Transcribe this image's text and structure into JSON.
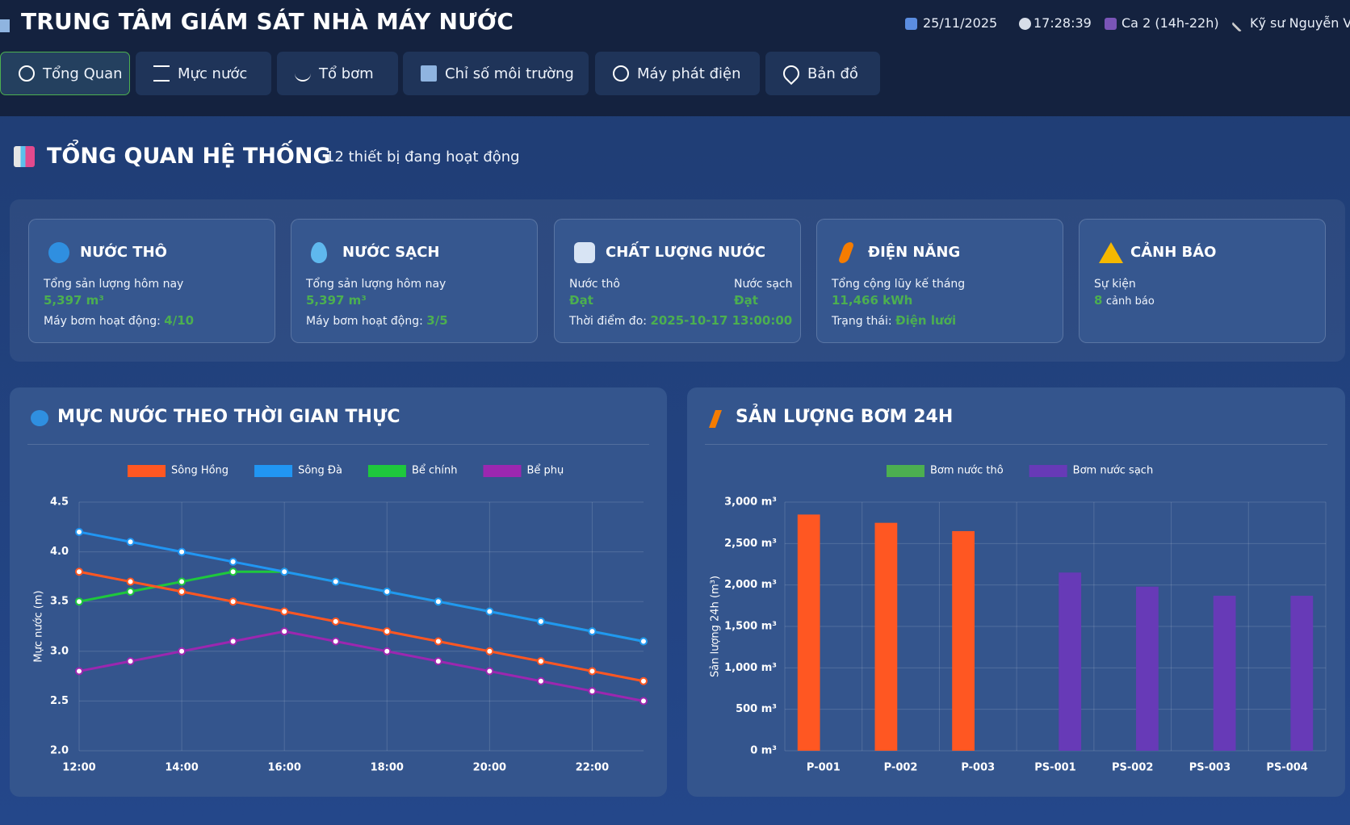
{
  "header": {
    "title": "TRUNG TÂM GIÁM SÁT NHÀ MÁY NƯỚC",
    "date": "25/11/2025",
    "time": "17:28:39",
    "shift": "Ca 2 (14h-22h)",
    "user": "Kỹ sư Nguyễn Vă"
  },
  "nav": [
    "Tổng Quan",
    "Mực nước",
    "Tổ bơm",
    "Chỉ số môi trường",
    "Máy phát điện",
    "Bản đồ"
  ],
  "overview": {
    "title": "TỔNG QUAN HỆ THỐNG",
    "subtitle": "12 thiết bị đang hoạt động"
  },
  "cards": [
    {
      "title": "NƯỚC THÔ",
      "label": "Tổng sản lượng hôm nay",
      "value": "5,397 m³",
      "pump_label": "Máy bơm hoạt động:",
      "pump_value": "4/10"
    },
    {
      "title": "NƯỚC SẠCH",
      "label": "Tổng sản lượng hôm nay",
      "value": "5,397 m³",
      "pump_label": "Máy bơm hoạt động:",
      "pump_value": "3/5"
    },
    {
      "title": "CHẤT LƯỢNG NƯỚC",
      "raw_label": "Nước thô",
      "raw_value": "Đạt",
      "clean_label": "Nước sạch",
      "clean_value": "Đạt",
      "time_label": "Thời điểm đo:",
      "time_value": "2025-10-17 13:00:00"
    },
    {
      "title": "ĐIỆN NĂNG",
      "label": "Tổng cộng lũy kế tháng",
      "value": "11,466 kWh",
      "status_label": "Trạng thái:",
      "status_value": "Điện lưới"
    },
    {
      "title": "CẢNH BÁO",
      "label": "Sự kiện",
      "count": 8,
      "count_label": "cảnh báo"
    }
  ],
  "chart_data": [
    {
      "type": "line",
      "title": "MỰC NƯỚC THEO THỜI GIAN THỰC",
      "y_label": "Mực nước (m)",
      "categories": [
        "12:00",
        null,
        "14:00",
        null,
        "16:00",
        null,
        "18:00",
        null,
        "20:00",
        null,
        "22:00",
        null
      ],
      "series": [
        {
          "name": "Sông Hồng",
          "color": "#ff5722",
          "values": [
            3.8,
            3.7,
            3.6,
            3.5,
            3.4,
            3.3,
            3.2,
            3.1,
            3.0,
            2.9,
            2.8,
            2.7
          ]
        },
        {
          "name": "Sông Đà",
          "color": "#2196f3",
          "values": [
            4.2,
            4.1,
            4.0,
            3.9,
            3.8,
            3.7,
            3.6,
            3.5,
            3.4,
            3.3,
            3.2,
            3.1
          ]
        },
        {
          "name": "Bể chính",
          "color": "#1ec83c",
          "values": [
            3.5,
            3.6,
            3.7,
            3.8,
            3.8,
            3.7,
            3.6,
            3.5,
            3.4,
            3.3,
            3.2,
            3.1
          ]
        },
        {
          "name": "Bể phụ",
          "color": "#9c27b0",
          "values": [
            2.8,
            2.9,
            3.0,
            3.1,
            3.2,
            3.1,
            3.0,
            2.9,
            2.8,
            2.7,
            2.6,
            2.5
          ]
        }
      ],
      "ylim": [
        2,
        4.5
      ],
      "yticks": [
        {
          "value": 2,
          "label": "2.0"
        },
        2.5,
        {
          "value": 3,
          "label": "3.0"
        },
        3.5,
        {
          "value": 4,
          "label": "4.0"
        },
        4.5
      ],
      "grid": true,
      "legend": "top"
    },
    {
      "type": "bar",
      "title": "SẢN LƯỢNG BƠM 24H",
      "y_label": "Sản lượng 24h (m³)",
      "categories": [
        "P-001",
        "P-002",
        "P-003",
        "PS-001",
        "PS-002",
        "PS-003",
        "PS-004"
      ],
      "series": [
        {
          "name": "Bơm nước thô",
          "color": "#4caf50",
          "fill_color": "#ff5722",
          "values": [
            2850,
            2750,
            2650,
            null,
            null,
            null,
            null
          ]
        },
        {
          "name": "Bơm nước sạch",
          "color": "#673ab7",
          "fill_color": "#673ab7",
          "values": [
            null,
            null,
            null,
            2150,
            1980,
            1870,
            1870
          ]
        }
      ],
      "ylim": [
        0,
        3000
      ],
      "yticks": [
        {
          "value": 0,
          "label": "0 m³"
        },
        {
          "value": 500,
          "label": "500 m³"
        },
        {
          "value": 1000,
          "label": "1,000 m³"
        },
        {
          "value": 1500,
          "label": "1,500 m³"
        },
        {
          "value": 2000,
          "label": "2,000 m³"
        },
        {
          "value": 2500,
          "label": "2,500 m³"
        },
        {
          "value": 3000,
          "label": "3,000 m³"
        }
      ],
      "grid": true,
      "legend": "top"
    }
  ]
}
